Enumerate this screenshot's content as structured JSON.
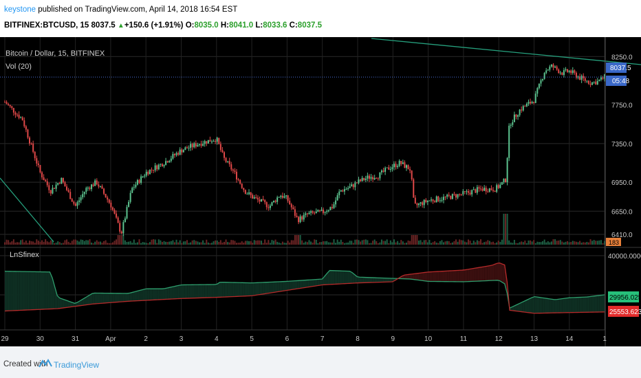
{
  "header": {
    "author": "keystone",
    "published": "published on TradingView.com, April 14, 2018 16:54 EST",
    "symbol": "BITFINEX:BTCUSD, 15",
    "last": "8037.5",
    "change": "+150.6 (+1.91%)",
    "open_label": "O:",
    "open": "8035.0",
    "high_label": "H:",
    "high": "8041.0",
    "low_label": "L:",
    "low": "8033.6",
    "close_label": "C:",
    "close": "8037.5"
  },
  "footer": {
    "created": "Created with",
    "brand": "TradingView"
  },
  "colors": {
    "up": "#5cc38f",
    "down": "#e04848",
    "price_line": "#4a6fd9",
    "trend": "#26a17e",
    "ln_green": "#2e9e6d",
    "ln_red": "#b62a2a"
  },
  "chart_data": [
    {
      "type": "candlestick",
      "title": "Bitcoin / Dollar, 15, BITFINEX",
      "indicator": "Vol (20)",
      "y_ticks": [
        "8250.0",
        "7750.0",
        "7350.0",
        "6950.0",
        "6650.0",
        "6410.0"
      ],
      "ylim": [
        6410,
        8330
      ],
      "last_price_label": "8037.5",
      "countdown_label": "05:48",
      "volume_label": "183",
      "x_ticks": [
        "29",
        "30",
        "31",
        "Apr",
        "2",
        "3",
        "4",
        "5",
        "6",
        "7",
        "8",
        "9",
        "10",
        "11",
        "12",
        "13",
        "14",
        "1"
      ],
      "price_path": [
        [
          0,
          7780
        ],
        [
          0.5,
          7600
        ],
        [
          1.0,
          7050
        ],
        [
          1.3,
          6860
        ],
        [
          1.6,
          6980
        ],
        [
          2.0,
          6700
        ],
        [
          2.3,
          6880
        ],
        [
          2.6,
          6950
        ],
        [
          3.0,
          6720
        ],
        [
          3.3,
          6420
        ],
        [
          3.6,
          6880
        ],
        [
          4.0,
          7050
        ],
        [
          4.5,
          7150
        ],
        [
          5.0,
          7280
        ],
        [
          5.5,
          7350
        ],
        [
          6.0,
          7400
        ],
        [
          6.2,
          7200
        ],
        [
          6.5,
          7050
        ],
        [
          6.8,
          6860
        ],
        [
          7.0,
          6800
        ],
        [
          7.5,
          6700
        ],
        [
          7.8,
          6820
        ],
        [
          8.0,
          6780
        ],
        [
          8.3,
          6560
        ],
        [
          8.6,
          6620
        ],
        [
          9.0,
          6640
        ],
        [
          9.3,
          6700
        ],
        [
          9.5,
          6860
        ],
        [
          9.8,
          6900
        ],
        [
          10.0,
          6950
        ],
        [
          10.3,
          7000
        ],
        [
          10.6,
          7020
        ],
        [
          10.9,
          7100
        ],
        [
          11.2,
          7150
        ],
        [
          11.5,
          7080
        ],
        [
          11.6,
          6700
        ],
        [
          12.0,
          6760
        ],
        [
          12.5,
          6790
        ],
        [
          13.0,
          6830
        ],
        [
          13.5,
          6880
        ],
        [
          13.9,
          6880
        ],
        [
          14.05,
          6920
        ],
        [
          14.2,
          6980
        ],
        [
          14.3,
          7550
        ],
        [
          14.6,
          7700
        ],
        [
          15.0,
          7800
        ],
        [
          15.3,
          8100
        ],
        [
          15.5,
          8150
        ],
        [
          15.8,
          8080
        ],
        [
          16.0,
          8100
        ],
        [
          16.3,
          8030
        ],
        [
          16.6,
          7980
        ],
        [
          16.8,
          7990
        ],
        [
          17.0,
          8037.5
        ]
      ]
    },
    {
      "type": "area",
      "title": "LnSfinex",
      "y_ticks": [
        "40000.0000"
      ],
      "ylim": [
        22000,
        40000
      ],
      "series": [
        {
          "name": "",
          "last_label": "29956.0259",
          "values": [
            [
              0,
              36000
            ],
            [
              1.3,
              35800
            ],
            [
              1.5,
              29300
            ],
            [
              2.0,
              27700
            ],
            [
              2.5,
              30400
            ],
            [
              3.5,
              30300
            ],
            [
              4.0,
              31500
            ],
            [
              4.5,
              31500
            ],
            [
              5.0,
              32500
            ],
            [
              6.0,
              32600
            ],
            [
              6.1,
              33200
            ],
            [
              7.0,
              33000
            ],
            [
              8.0,
              33400
            ],
            [
              9.0,
              34000
            ],
            [
              9.2,
              36200
            ],
            [
              9.8,
              36000
            ],
            [
              10.0,
              34500
            ],
            [
              11.5,
              34000
            ],
            [
              12.0,
              33400
            ],
            [
              13.0,
              33300
            ],
            [
              14.0,
              33700
            ],
            [
              14.2,
              32600
            ],
            [
              14.3,
              26500
            ],
            [
              15.0,
              29500
            ],
            [
              15.6,
              28700
            ],
            [
              16.0,
              29200
            ],
            [
              16.5,
              29400
            ],
            [
              17.0,
              29956
            ]
          ]
        },
        {
          "name": "",
          "last_label": "25553.6234",
          "values": [
            [
              0,
              25800
            ],
            [
              1.5,
              26400
            ],
            [
              2.5,
              27600
            ],
            [
              3.5,
              28300
            ],
            [
              5.0,
              29000
            ],
            [
              6.0,
              29300
            ],
            [
              7.0,
              29700
            ],
            [
              8.0,
              31100
            ],
            [
              9.0,
              32500
            ],
            [
              10.0,
              33000
            ],
            [
              11.0,
              33300
            ],
            [
              11.3,
              35000
            ],
            [
              12.0,
              35800
            ],
            [
              13.0,
              36300
            ],
            [
              13.8,
              37500
            ],
            [
              14.0,
              38200
            ],
            [
              14.2,
              37500
            ],
            [
              14.3,
              26000
            ],
            [
              15.0,
              25200
            ],
            [
              16.0,
              25400
            ],
            [
              17.0,
              25554
            ]
          ]
        }
      ]
    }
  ]
}
